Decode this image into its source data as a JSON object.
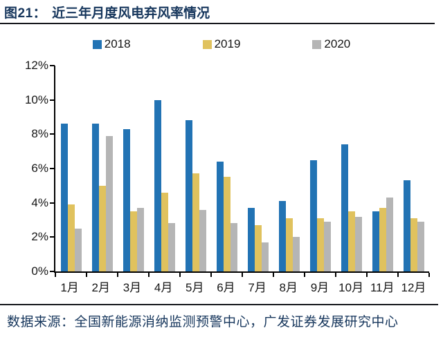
{
  "figure": {
    "label": "图21：",
    "title": "近三年月度风电弃风率情况",
    "source": "数据来源：全国新能源消纳监测预警中心，广发证券发展研究中心"
  },
  "colors": {
    "accent_title": "#16365C",
    "axis": "#000000",
    "series_2018": "#2273B4",
    "series_2019": "#E0C25E",
    "series_2020": "#B5B5B5"
  },
  "chart_data": {
    "type": "bar",
    "title": "近三年月度风电弃风率情况",
    "categories": [
      "1月",
      "2月",
      "3月",
      "4月",
      "5月",
      "6月",
      "7月",
      "8月",
      "9月",
      "10月",
      "11月",
      "12月"
    ],
    "series": [
      {
        "name": "2018",
        "color": "#2273B4",
        "values": [
          8.6,
          8.6,
          8.3,
          10.0,
          8.8,
          6.4,
          3.7,
          4.1,
          6.5,
          7.4,
          3.5,
          5.3
        ]
      },
      {
        "name": "2019",
        "color": "#E0C25E",
        "values": [
          3.9,
          5.0,
          3.5,
          4.6,
          5.7,
          5.5,
          2.7,
          3.1,
          3.1,
          3.5,
          3.7,
          3.1
        ]
      },
      {
        "name": "2020",
        "color": "#B5B5B5",
        "values": [
          2.5,
          7.9,
          3.7,
          2.8,
          3.6,
          2.8,
          1.7,
          2.0,
          2.9,
          3.2,
          4.3,
          2.9
        ]
      }
    ],
    "xlabel": "",
    "ylabel": "",
    "ylim": [
      0,
      12
    ],
    "ytick_step": 2,
    "ytick_labels": [
      "0%",
      "2%",
      "4%",
      "6%",
      "8%",
      "10%",
      "12%"
    ],
    "legend_position": "top",
    "grid": false
  }
}
